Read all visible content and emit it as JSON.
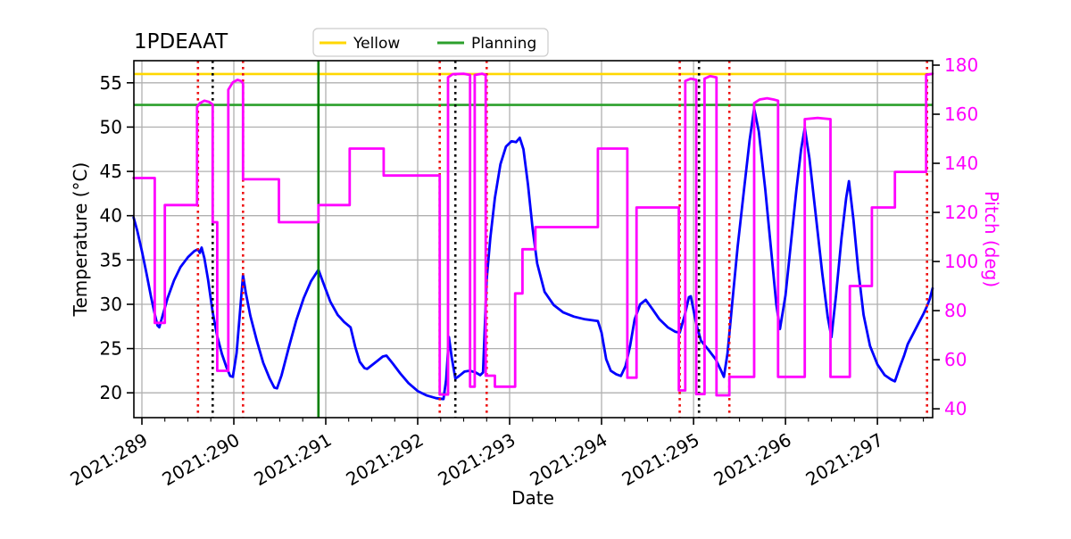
{
  "chart_data": {
    "type": "line",
    "title": "1PDEAAT",
    "xlabel": "Date",
    "ylabel_left": "Temperature (°C)",
    "ylabel_right": "Pitch (deg)",
    "xlim": [
      288.913,
      297.601
    ],
    "ylim_left": [
      17.2,
      57.5
    ],
    "ylim_right": [
      36.4,
      181.8
    ],
    "grid": true,
    "grid_color": "#b0b0b0",
    "spine_color": "#000000",
    "left_tick_label_color": "#000000",
    "right_tick_label_color": "#ff00ff",
    "x_major_ticks": [
      {
        "value": 289,
        "label": "2021:289"
      },
      {
        "value": 290,
        "label": "2021:290"
      },
      {
        "value": 291,
        "label": "2021:291"
      },
      {
        "value": 292,
        "label": "2021:292"
      },
      {
        "value": 293,
        "label": "2021:293"
      },
      {
        "value": 294,
        "label": "2021:294"
      },
      {
        "value": 295,
        "label": "2021:295"
      },
      {
        "value": 296,
        "label": "2021:296"
      },
      {
        "value": 297,
        "label": "2021:297"
      }
    ],
    "x_minor_step": 0.25,
    "y_left_ticks": [
      20,
      25,
      30,
      35,
      40,
      45,
      50,
      55
    ],
    "y_right_ticks": [
      40,
      60,
      80,
      100,
      120,
      140,
      160,
      180
    ],
    "legend": {
      "position": "top-center",
      "items": [
        {
          "label": "Yellow",
          "color": "#ffd700"
        },
        {
          "label": "Planning",
          "color": "#2ca02c"
        }
      ]
    },
    "hlines": [
      {
        "name": "yellow-limit",
        "y": 56.0,
        "axis": "left",
        "color": "#ffd700",
        "style": "solid"
      },
      {
        "name": "planning-limit",
        "y": 52.5,
        "axis": "left",
        "color": "#2ca02c",
        "style": "solid"
      }
    ],
    "vlines": [
      {
        "name": "green-event",
        "x": 290.92,
        "color": "#008000",
        "style": "solid"
      },
      {
        "name": "red-event-1",
        "x": 289.61,
        "color": "#ee1111",
        "style": "dotted"
      },
      {
        "name": "red-event-2",
        "x": 290.1,
        "color": "#ee1111",
        "style": "dotted"
      },
      {
        "name": "red-event-3",
        "x": 292.24,
        "color": "#ee1111",
        "style": "dotted"
      },
      {
        "name": "red-event-4",
        "x": 292.75,
        "color": "#ee1111",
        "style": "dotted"
      },
      {
        "name": "red-event-5",
        "x": 294.85,
        "color": "#ee1111",
        "style": "dotted"
      },
      {
        "name": "red-event-6",
        "x": 295.39,
        "color": "#ee1111",
        "style": "dotted"
      },
      {
        "name": "red-event-7",
        "x": 297.54,
        "color": "#ee1111",
        "style": "dotted"
      },
      {
        "name": "black-event-1",
        "x": 289.77,
        "color": "#000000",
        "style": "dotted"
      },
      {
        "name": "black-event-2",
        "x": 292.41,
        "color": "#000000",
        "style": "dotted"
      },
      {
        "name": "black-event-3",
        "x": 295.06,
        "color": "#000000",
        "style": "dotted"
      }
    ],
    "series": [
      {
        "name": "temperature",
        "axis": "left",
        "color": "#0000ff",
        "width": 2.8,
        "points": [
          [
            288.91,
            39.8
          ],
          [
            288.95,
            38.3
          ],
          [
            289.0,
            36.0
          ],
          [
            289.05,
            33.5
          ],
          [
            289.1,
            30.8
          ],
          [
            289.14,
            28.9
          ],
          [
            289.17,
            27.6
          ],
          [
            289.19,
            27.4
          ],
          [
            289.23,
            28.9
          ],
          [
            289.28,
            30.7
          ],
          [
            289.35,
            32.7
          ],
          [
            289.42,
            34.2
          ],
          [
            289.5,
            35.3
          ],
          [
            289.57,
            36.0
          ],
          [
            289.61,
            36.2
          ],
          [
            289.63,
            35.8
          ],
          [
            289.65,
            36.4
          ],
          [
            289.68,
            35.2
          ],
          [
            289.72,
            32.8
          ],
          [
            289.77,
            29.1
          ],
          [
            289.82,
            26.4
          ],
          [
            289.87,
            24.4
          ],
          [
            289.92,
            22.9
          ],
          [
            289.96,
            21.9
          ],
          [
            289.99,
            21.8
          ],
          [
            290.03,
            24.5
          ],
          [
            290.07,
            29.5
          ],
          [
            290.1,
            33.3
          ],
          [
            290.13,
            31.3
          ],
          [
            290.18,
            28.7
          ],
          [
            290.25,
            25.9
          ],
          [
            290.32,
            23.4
          ],
          [
            290.39,
            21.6
          ],
          [
            290.44,
            20.6
          ],
          [
            290.47,
            20.5
          ],
          [
            290.52,
            22.0
          ],
          [
            290.6,
            25.2
          ],
          [
            290.68,
            28.2
          ],
          [
            290.76,
            30.7
          ],
          [
            290.84,
            32.6
          ],
          [
            290.92,
            33.9
          ],
          [
            290.97,
            32.5
          ],
          [
            291.05,
            30.3
          ],
          [
            291.13,
            28.8
          ],
          [
            291.2,
            28.0
          ],
          [
            291.27,
            27.4
          ],
          [
            291.32,
            25.2
          ],
          [
            291.37,
            23.5
          ],
          [
            291.42,
            22.8
          ],
          [
            291.45,
            22.7
          ],
          [
            291.5,
            23.1
          ],
          [
            291.56,
            23.6
          ],
          [
            291.62,
            24.1
          ],
          [
            291.66,
            24.2
          ],
          [
            291.73,
            23.3
          ],
          [
            291.81,
            22.2
          ],
          [
            291.9,
            21.1
          ],
          [
            292.0,
            20.2
          ],
          [
            292.1,
            19.7
          ],
          [
            292.2,
            19.4
          ],
          [
            292.28,
            19.3
          ],
          [
            292.31,
            21.5
          ],
          [
            292.34,
            26.3
          ],
          [
            292.37,
            24.0
          ],
          [
            292.41,
            21.6
          ],
          [
            292.45,
            21.9
          ],
          [
            292.51,
            22.4
          ],
          [
            292.57,
            22.5
          ],
          [
            292.63,
            22.3
          ],
          [
            292.68,
            22.0
          ],
          [
            292.71,
            22.3
          ],
          [
            292.75,
            32.8
          ],
          [
            292.79,
            37.5
          ],
          [
            292.84,
            42.0
          ],
          [
            292.9,
            45.8
          ],
          [
            292.96,
            47.8
          ],
          [
            293.02,
            48.4
          ],
          [
            293.07,
            48.3
          ],
          [
            293.11,
            48.8
          ],
          [
            293.15,
            47.5
          ],
          [
            293.2,
            43.5
          ],
          [
            293.25,
            38.5
          ],
          [
            293.3,
            34.6
          ],
          [
            293.38,
            31.4
          ],
          [
            293.48,
            29.9
          ],
          [
            293.58,
            29.1
          ],
          [
            293.7,
            28.6
          ],
          [
            293.82,
            28.3
          ],
          [
            293.96,
            28.1
          ],
          [
            294.0,
            26.8
          ],
          [
            294.05,
            23.8
          ],
          [
            294.1,
            22.5
          ],
          [
            294.16,
            22.1
          ],
          [
            294.21,
            21.9
          ],
          [
            294.26,
            23.0
          ],
          [
            294.31,
            25.3
          ],
          [
            294.36,
            28.3
          ],
          [
            294.42,
            30.0
          ],
          [
            294.48,
            30.5
          ],
          [
            294.55,
            29.5
          ],
          [
            294.63,
            28.3
          ],
          [
            294.72,
            27.4
          ],
          [
            294.8,
            26.9
          ],
          [
            294.85,
            26.8
          ],
          [
            294.9,
            28.6
          ],
          [
            294.95,
            30.8
          ],
          [
            294.97,
            30.9
          ],
          [
            295.03,
            27.8
          ],
          [
            295.08,
            25.9
          ],
          [
            295.16,
            24.9
          ],
          [
            295.24,
            23.8
          ],
          [
            295.3,
            22.5
          ],
          [
            295.33,
            21.8
          ],
          [
            295.37,
            24.5
          ],
          [
            295.42,
            30.0
          ],
          [
            295.48,
            36.5
          ],
          [
            295.55,
            43.0
          ],
          [
            295.61,
            48.5
          ],
          [
            295.66,
            52.1
          ],
          [
            295.71,
            49.5
          ],
          [
            295.78,
            43.0
          ],
          [
            295.85,
            35.5
          ],
          [
            295.9,
            30.0
          ],
          [
            295.94,
            27.2
          ],
          [
            296.0,
            31.0
          ],
          [
            296.06,
            37.0
          ],
          [
            296.12,
            43.0
          ],
          [
            296.17,
            47.5
          ],
          [
            296.21,
            49.9
          ],
          [
            296.26,
            46.5
          ],
          [
            296.33,
            40.0
          ],
          [
            296.4,
            33.5
          ],
          [
            296.46,
            28.5
          ],
          [
            296.5,
            26.3
          ],
          [
            296.55,
            31.0
          ],
          [
            296.61,
            37.5
          ],
          [
            296.66,
            42.0
          ],
          [
            296.69,
            43.9
          ],
          [
            296.74,
            39.5
          ],
          [
            296.79,
            34.0
          ],
          [
            296.85,
            28.8
          ],
          [
            296.92,
            25.3
          ],
          [
            297.0,
            23.2
          ],
          [
            297.08,
            22.0
          ],
          [
            297.15,
            21.5
          ],
          [
            297.19,
            21.3
          ],
          [
            297.24,
            22.8
          ],
          [
            297.29,
            24.2
          ],
          [
            297.33,
            25.5
          ],
          [
            297.39,
            26.7
          ],
          [
            297.45,
            27.9
          ],
          [
            297.5,
            28.9
          ],
          [
            297.54,
            29.8
          ],
          [
            297.57,
            30.6
          ],
          [
            297.6,
            31.8
          ]
        ]
      },
      {
        "name": "pitch",
        "axis": "right",
        "color": "#ff00ff",
        "width": 2.8,
        "points": [
          [
            288.91,
            134
          ],
          [
            289.14,
            134
          ],
          [
            289.14,
            75
          ],
          [
            289.25,
            75
          ],
          [
            289.25,
            123
          ],
          [
            289.6,
            123
          ],
          [
            289.6,
            163
          ],
          [
            289.63,
            164.5
          ],
          [
            289.68,
            165.5
          ],
          [
            289.73,
            165
          ],
          [
            289.77,
            164
          ],
          [
            289.77,
            116
          ],
          [
            289.82,
            116
          ],
          [
            289.82,
            55.5
          ],
          [
            289.94,
            55.5
          ],
          [
            289.94,
            170
          ],
          [
            289.99,
            173
          ],
          [
            290.04,
            174
          ],
          [
            290.08,
            173.5
          ],
          [
            290.1,
            172.5
          ],
          [
            290.1,
            133.5
          ],
          [
            290.49,
            133.5
          ],
          [
            290.49,
            116
          ],
          [
            290.92,
            116
          ],
          [
            290.92,
            123
          ],
          [
            291.26,
            123
          ],
          [
            291.26,
            146
          ],
          [
            291.63,
            146
          ],
          [
            291.63,
            135
          ],
          [
            292.24,
            135
          ],
          [
            292.24,
            45.8
          ],
          [
            292.33,
            45.8
          ],
          [
            292.33,
            175
          ],
          [
            292.38,
            176.3
          ],
          [
            292.5,
            176.5
          ],
          [
            292.57,
            176
          ],
          [
            292.57,
            49
          ],
          [
            292.62,
            49
          ],
          [
            292.62,
            176
          ],
          [
            292.7,
            176.5
          ],
          [
            292.74,
            176
          ],
          [
            292.74,
            53.5
          ],
          [
            292.84,
            53.5
          ],
          [
            292.84,
            49
          ],
          [
            293.06,
            49
          ],
          [
            293.06,
            87
          ],
          [
            293.14,
            87
          ],
          [
            293.14,
            105
          ],
          [
            293.28,
            105
          ],
          [
            293.28,
            114
          ],
          [
            293.96,
            114
          ],
          [
            293.96,
            146
          ],
          [
            294.28,
            146
          ],
          [
            294.28,
            52.7
          ],
          [
            294.38,
            52.7
          ],
          [
            294.38,
            122
          ],
          [
            294.84,
            122
          ],
          [
            294.84,
            47.5
          ],
          [
            294.91,
            47.5
          ],
          [
            294.91,
            173.5
          ],
          [
            294.97,
            174.5
          ],
          [
            295.03,
            174
          ],
          [
            295.03,
            46
          ],
          [
            295.12,
            46
          ],
          [
            295.12,
            174.5
          ],
          [
            295.18,
            175.5
          ],
          [
            295.25,
            175
          ],
          [
            295.25,
            45.5
          ],
          [
            295.39,
            45.5
          ],
          [
            295.39,
            53
          ],
          [
            295.66,
            53
          ],
          [
            295.66,
            164.5
          ],
          [
            295.72,
            166
          ],
          [
            295.8,
            166.5
          ],
          [
            295.87,
            166
          ],
          [
            295.92,
            165.5
          ],
          [
            295.92,
            53
          ],
          [
            296.21,
            53
          ],
          [
            296.21,
            158
          ],
          [
            296.35,
            158.5
          ],
          [
            296.49,
            158
          ],
          [
            296.49,
            53
          ],
          [
            296.7,
            53
          ],
          [
            296.7,
            90
          ],
          [
            296.94,
            90
          ],
          [
            296.94,
            122
          ],
          [
            297.19,
            122
          ],
          [
            297.19,
            136.5
          ],
          [
            297.53,
            136.5
          ],
          [
            297.53,
            176
          ],
          [
            297.6,
            176.5
          ]
        ]
      }
    ]
  }
}
